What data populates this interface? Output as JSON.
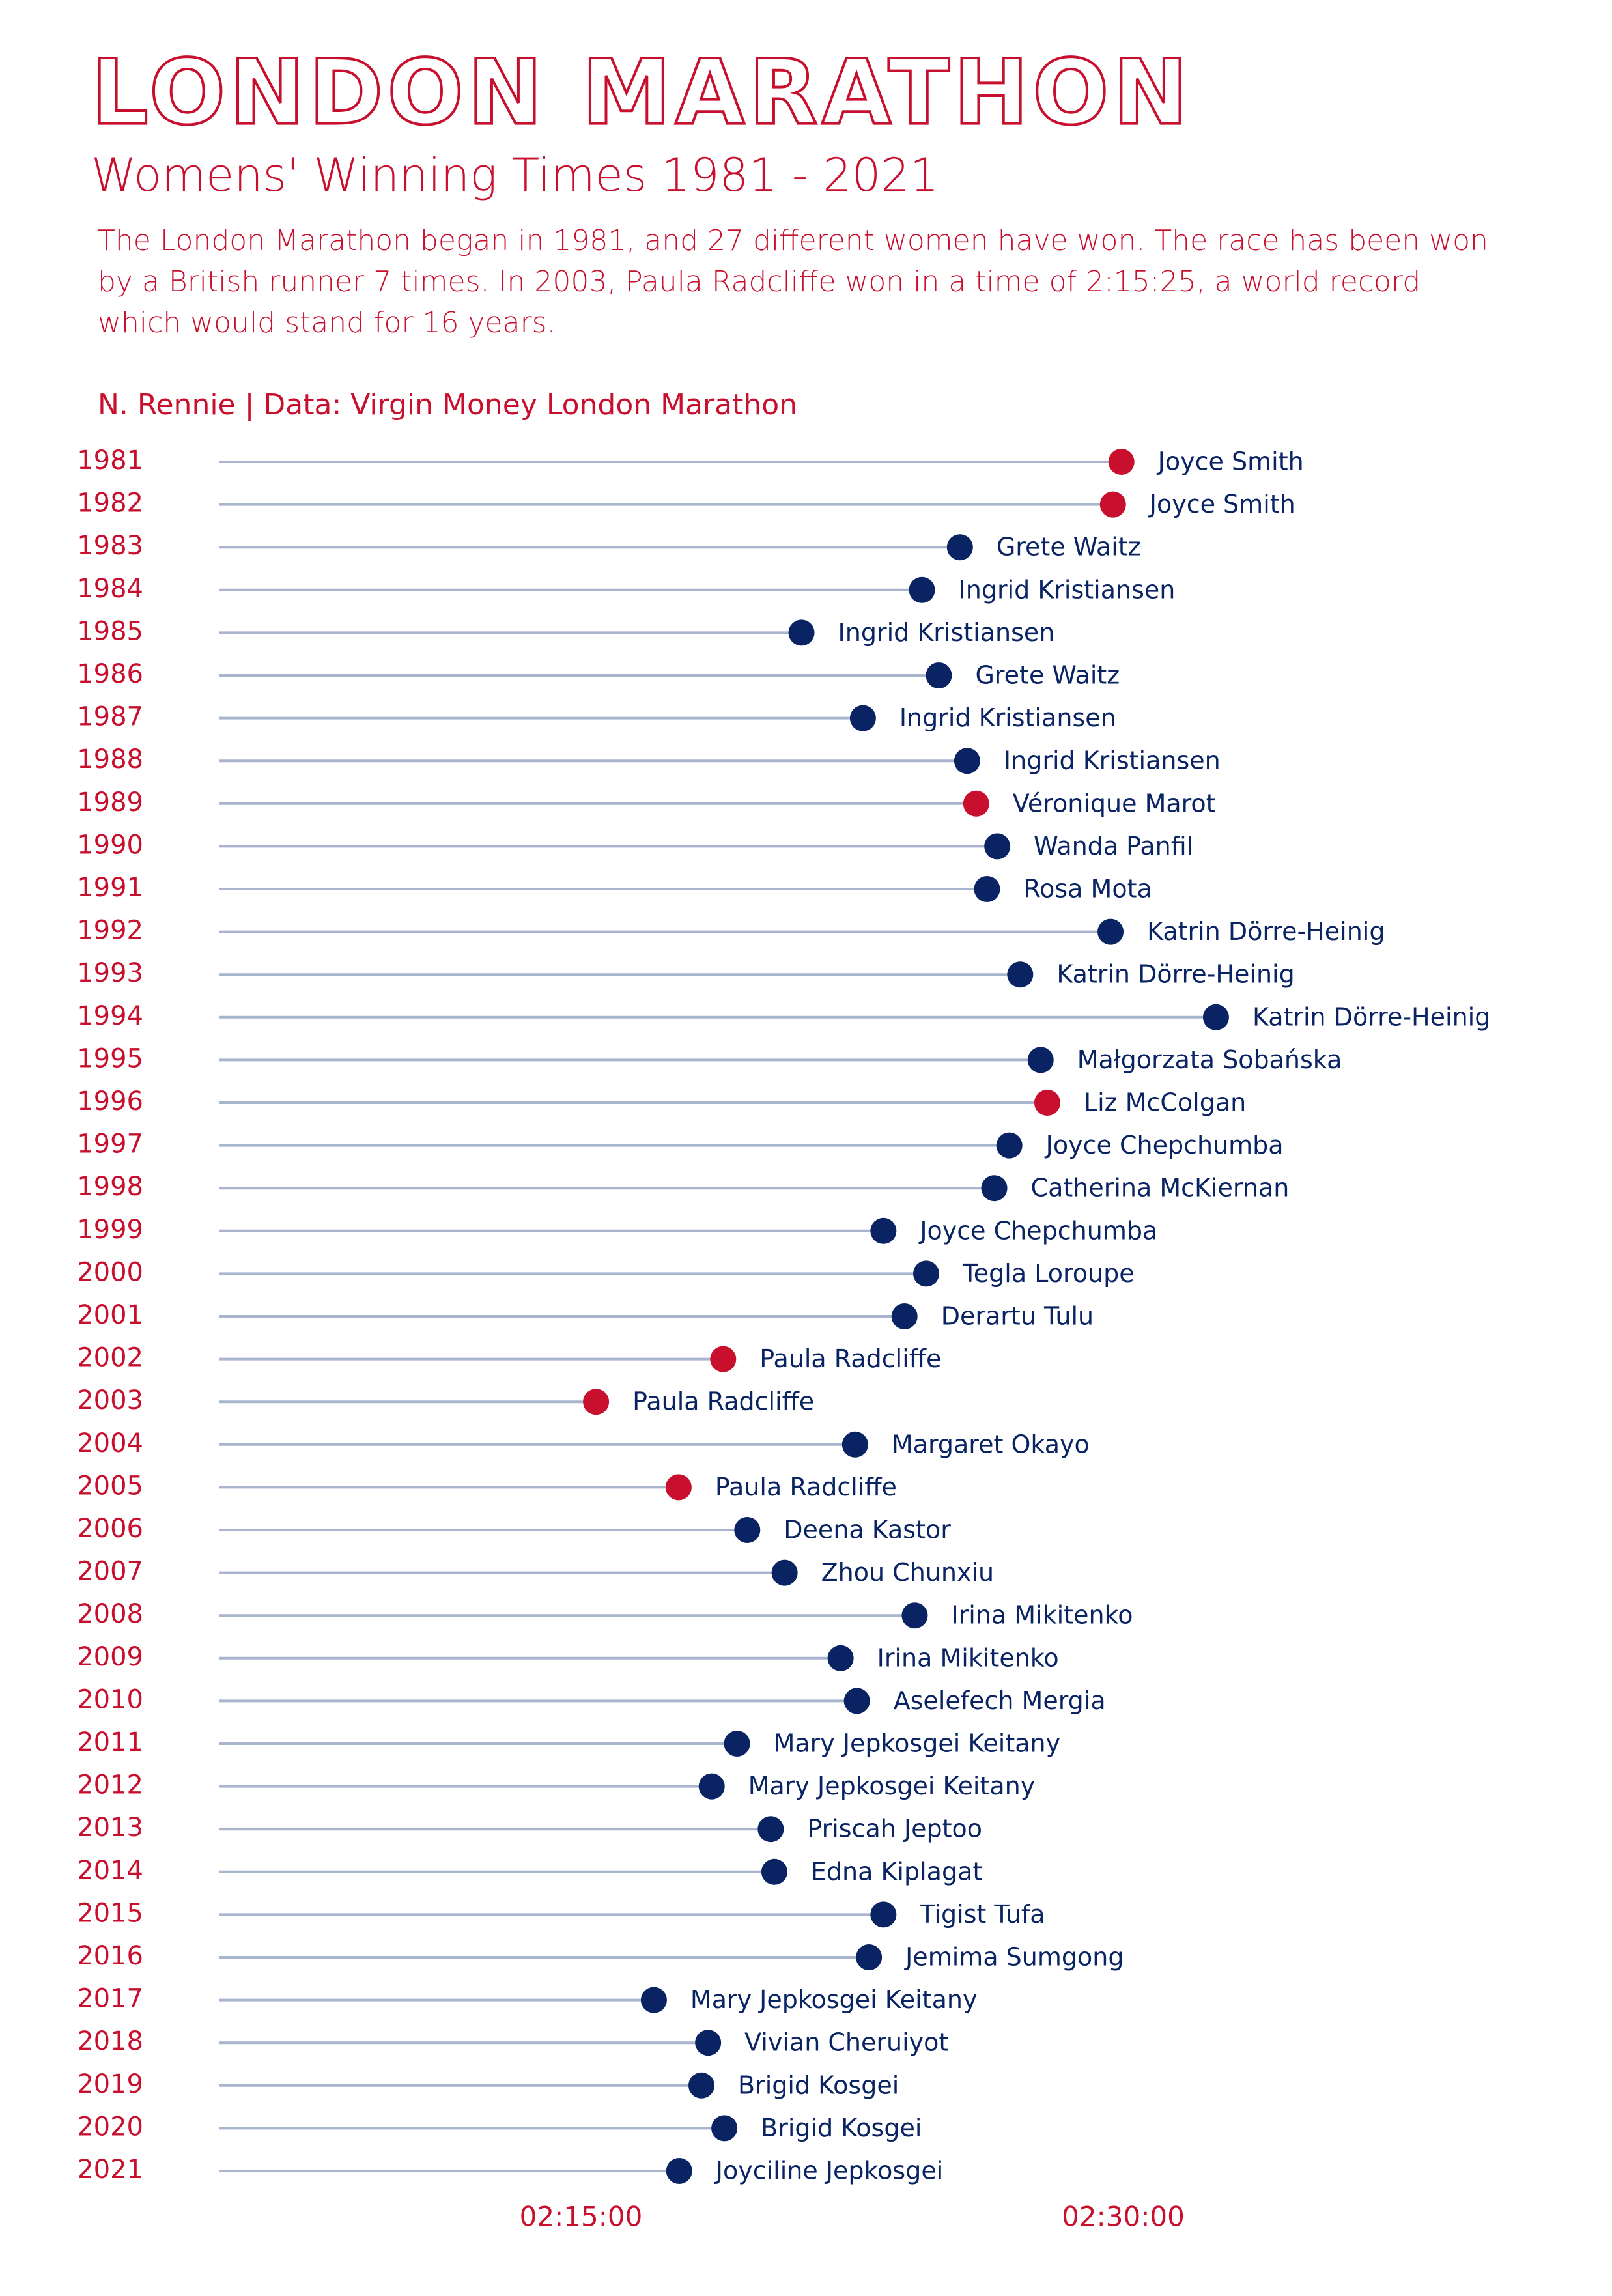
{
  "chart_data": {
    "type": "lollipop",
    "title": "London Marathon",
    "subtitle": "Womens' Winning Times 1981 - 2021",
    "description": "The London Marathon began in 1981, and 27 different women have won. The race has been won by a British runner 7 times. In 2003, Paula Radcliffe won in a time of 2:15:25, a world record which would stand for 16 years.",
    "caption": "N. Rennie | Data: Virgin Money London Marathon",
    "categories": [
      "1981",
      "1982",
      "1983",
      "1984",
      "1985",
      "1986",
      "1987",
      "1988",
      "1989",
      "1990",
      "1991",
      "1992",
      "1993",
      "1994",
      "1995",
      "1996",
      "1997",
      "1998",
      "1999",
      "2000",
      "2001",
      "2002",
      "2003",
      "2004",
      "2005",
      "2006",
      "2007",
      "2008",
      "2009",
      "2010",
      "2011",
      "2012",
      "2013",
      "2014",
      "2015",
      "2016",
      "2017",
      "2018",
      "2019",
      "2020",
      "2021"
    ],
    "labels": [
      "Joyce Smith",
      "Joyce Smith",
      "Grete Waitz",
      "Ingrid Kristiansen",
      "Ingrid Kristiansen",
      "Grete Waitz",
      "Ingrid Kristiansen",
      "Ingrid Kristiansen",
      "Véronique Marot",
      "Wanda Panfil",
      "Rosa Mota",
      "Katrin Dörre-Heinig",
      "Katrin Dörre-Heinig",
      "Katrin Dörre-Heinig",
      "Małgorzata Sobańska",
      "Liz McColgan",
      "Joyce Chepchumba",
      "Catherina McKiernan",
      "Joyce Chepchumba",
      "Tegla Loroupe",
      "Derartu Tulu",
      "Paula Radcliffe",
      "Paula Radcliffe",
      "Margaret Okayo",
      "Paula Radcliffe",
      "Deena Kastor",
      "Zhou Chunxiu",
      "Irina Mikitenko",
      "Irina Mikitenko",
      "Aselefech Mergia",
      "Mary Jepkosgei Keitany",
      "Mary Jepkosgei Keitany",
      "Priscah Jeptoo",
      "Edna Kiplagat",
      "Tigist Tufa",
      "Jemima Sumgong",
      "Mary Jepkosgei Keitany",
      "Vivian Cheruiyot",
      "Brigid Kosgei",
      "Brigid Kosgei",
      "Joyciline Jepkosgei"
    ],
    "values": [
      8997,
      8983,
      8729,
      8666,
      8466,
      8694,
      8568,
      8741,
      8756,
      8791,
      8774,
      8979,
      8829,
      9154,
      8863,
      8874,
      8811,
      8786,
      8602,
      8673,
      8637,
      8336,
      8125,
      8555,
      8262,
      8376,
      8438,
      8654,
      8531,
      8558,
      8359,
      8317,
      8415,
      8421,
      8602,
      8578,
      8221,
      8311,
      8300,
      8338,
      8263
    ],
    "point_colors": [
      "#c8102e",
      "#c8102e",
      "#0a2463",
      "#0a2463",
      "#0a2463",
      "#0a2463",
      "#0a2463",
      "#0a2463",
      "#c8102e",
      "#0a2463",
      "#0a2463",
      "#0a2463",
      "#0a2463",
      "#0a2463",
      "#0a2463",
      "#c8102e",
      "#0a2463",
      "#0a2463",
      "#0a2463",
      "#0a2463",
      "#0a2463",
      "#c8102e",
      "#c8102e",
      "#0a2463",
      "#c8102e",
      "#0a2463",
      "#0a2463",
      "#0a2463",
      "#0a2463",
      "#0a2463",
      "#0a2463",
      "#0a2463",
      "#0a2463",
      "#0a2463",
      "#0a2463",
      "#0a2463",
      "#0a2463",
      "#0a2463",
      "#0a2463",
      "#0a2463",
      "#0a2463"
    ],
    "stem_color": "#a9b4cf",
    "accent_color": "#c8102e",
    "label_color": "#0a2463",
    "xlim": [
      7500,
      9300
    ],
    "xticks": [
      {
        "value": 8100,
        "label": "02:15:00"
      },
      {
        "value": 9000,
        "label": "02:30:00"
      }
    ]
  }
}
